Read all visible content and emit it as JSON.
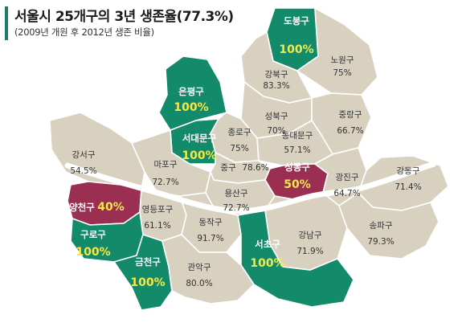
{
  "header": {
    "title": "서울시 25개구의 3년 생존율(77.3%)",
    "subtitle": "(2009년 개원 후 2012년 생존 비율)"
  },
  "colors": {
    "default": "#d8d1bf",
    "high": "#138a6a",
    "low": "#9b2f52",
    "highlight_value": "#f5e94a",
    "river": "#ffffff"
  },
  "districts": {
    "dobong": {
      "name": "도봉구",
      "value": "100%",
      "style": "green"
    },
    "nowon": {
      "name": "노원구",
      "value": "75%",
      "style": "plain"
    },
    "gangbuk": {
      "name": "강북구",
      "value": "83.3%",
      "style": "plain"
    },
    "eunpyeong": {
      "name": "은평구",
      "value": "100%",
      "style": "green"
    },
    "seongbuk": {
      "name": "성북구",
      "value": "70%",
      "style": "plain"
    },
    "jungnang": {
      "name": "중랑구",
      "value": "66.7%",
      "style": "plain"
    },
    "jongno": {
      "name": "종로구",
      "value": "75%",
      "style": "plain"
    },
    "dongdaemun": {
      "name": "동대문구",
      "value": "57.1%",
      "style": "plain"
    },
    "seodaemun": {
      "name": "서대문구",
      "value": "100%",
      "style": "green"
    },
    "gangseo": {
      "name": "강서구",
      "value": "54.5%",
      "style": "plain"
    },
    "mapo": {
      "name": "마포구",
      "value": "72.7%",
      "style": "plain"
    },
    "jung": {
      "name": "중구",
      "value": "78.6%",
      "style": "plain"
    },
    "seongdong": {
      "name": "성동구",
      "value": "50%",
      "style": "wine"
    },
    "gwangjin": {
      "name": "광진구",
      "value": "64.7%",
      "style": "plain"
    },
    "gangdong": {
      "name": "강동구",
      "value": "71.4%",
      "style": "plain"
    },
    "yangcheon": {
      "name": "양천구",
      "value": "40%",
      "style": "wine"
    },
    "yongsan": {
      "name": "용산구",
      "value": "72.7%",
      "style": "plain"
    },
    "yeongdeungpo": {
      "name": "영등포구",
      "value": "61.1%",
      "style": "plain"
    },
    "guro": {
      "name": "구로구",
      "value": "100%",
      "style": "green"
    },
    "dongjak": {
      "name": "동작구",
      "value": "91.7%",
      "style": "plain"
    },
    "gangnam": {
      "name": "강남구",
      "value": "71.9%",
      "style": "plain"
    },
    "songpa": {
      "name": "송파구",
      "value": "79.3%",
      "style": "plain"
    },
    "seocho": {
      "name": "서초구",
      "value": "100%",
      "style": "green"
    },
    "geumcheon": {
      "name": "금천구",
      "value": "100%",
      "style": "green"
    },
    "gwanak": {
      "name": "관악구",
      "value": "80.0%",
      "style": "plain"
    }
  }
}
